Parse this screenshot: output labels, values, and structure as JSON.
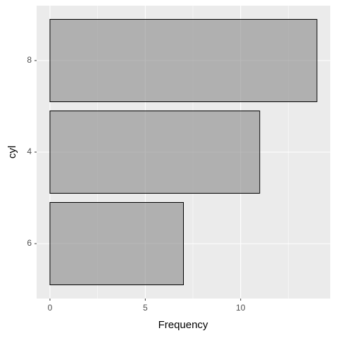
{
  "chart_data": {
    "type": "bar",
    "orientation": "horizontal",
    "categories": [
      "8",
      "4",
      "6"
    ],
    "values": [
      14,
      11,
      7
    ],
    "color": "#808080",
    "alpha": 0.55,
    "edge_color": "#000000",
    "x_label": "Frequency",
    "y_label": "cyl",
    "xlim": [
      -0.7,
      14.7
    ],
    "xticks": [
      0,
      5,
      10
    ],
    "x_minor_ticks": [
      2.5,
      7.5,
      12.5
    ],
    "grid": true
  }
}
